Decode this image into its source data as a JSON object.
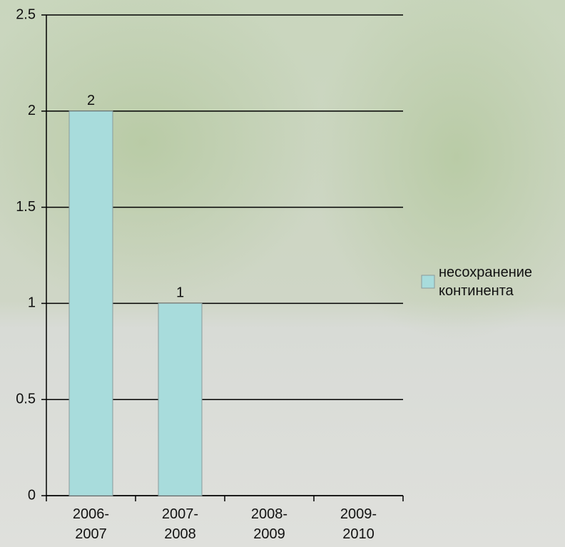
{
  "chart_data": {
    "type": "bar",
    "categories": [
      "2006-\n2007",
      "2007-\n2008",
      "2008-\n2009",
      "2009-\n2010"
    ],
    "series": [
      {
        "name": "несохранение континента",
        "color": "#a8dcdc",
        "values": [
          2,
          1,
          null,
          null
        ]
      }
    ],
    "ylim": [
      0,
      2.5
    ],
    "yticks": [
      0,
      0.5,
      1,
      1.5,
      2,
      2.5
    ],
    "grid": true,
    "legend": "right"
  }
}
